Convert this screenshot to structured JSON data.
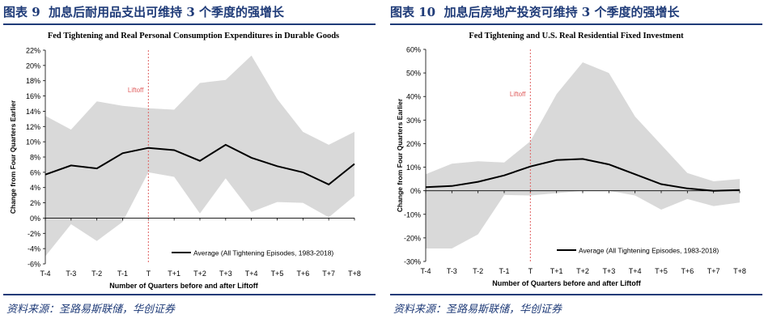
{
  "chart_data": [
    {
      "type": "line",
      "figure_label": "图表 9",
      "figure_title": "加息后耐用品支出可维持 3 个季度的强增长",
      "title": "Fed Tightening and Real Personal Consumption Expenditures in Durable Goods",
      "xlabel": "Number of Quarters before and after Liftoff",
      "ylabel": "Change from Four Quarters Earlier",
      "categories": [
        "T-4",
        "T-3",
        "T-2",
        "T-1",
        "T",
        "T+1",
        "T+2",
        "T+3",
        "T+4",
        "T+5",
        "T+6",
        "T+7",
        "T+8"
      ],
      "y_ticks": [
        -6,
        -4,
        -2,
        0,
        2,
        4,
        6,
        8,
        10,
        12,
        14,
        16,
        18,
        20,
        22
      ],
      "y_tick_labels": [
        "-6%",
        "-4%",
        "-2%",
        "0%",
        "2%",
        "4%",
        "6%",
        "8%",
        "10%",
        "12%",
        "14%",
        "16%",
        "18%",
        "20%",
        "22%"
      ],
      "ylim": [
        -6,
        22
      ],
      "band_upper": [
        13.4,
        11.6,
        15.3,
        14.7,
        14.4,
        14.2,
        17.7,
        18.1,
        21.3,
        15.6,
        11.3,
        9.6,
        11.3
      ],
      "band_lower": [
        -5.0,
        -0.8,
        -3.0,
        -0.5,
        6.0,
        5.4,
        0.6,
        5.2,
        0.8,
        2.1,
        2.0,
        0.1,
        2.9
      ],
      "series": [
        {
          "name": "Average (All Tightening Episodes, 1983-2018)",
          "values": [
            5.7,
            6.9,
            6.5,
            8.5,
            9.2,
            8.9,
            7.5,
            9.6,
            7.9,
            6.8,
            6.0,
            4.4,
            7.1
          ]
        }
      ],
      "liftoff_label": "Liftoff",
      "liftoff_category": "T",
      "source": "资料来源：圣路易斯联储，华创证券",
      "colors": {
        "band": "#d9d9d9",
        "line": "#000000",
        "liftoff": "#e06060",
        "accent": "#1f3b78"
      }
    },
    {
      "type": "line",
      "figure_label": "图表 10",
      "figure_title": "加息后房地产投资可维持 3 个季度的强增长",
      "title": "Fed Tightening and U.S. Real Residential Fixed Investment",
      "xlabel": "Number of Quarters before and after Liftoff",
      "ylabel": "Change from Four Quarters Earlier",
      "categories": [
        "T-4",
        "T-3",
        "T-2",
        "T-1",
        "T",
        "T+1",
        "T+2",
        "T+3",
        "T+4",
        "T+5",
        "T+6",
        "T+7",
        "T+8"
      ],
      "y_ticks": [
        -30,
        -20,
        -10,
        0,
        10,
        20,
        30,
        40,
        50,
        60
      ],
      "y_tick_labels": [
        "-30%",
        "-20%",
        "-10%",
        "0%",
        "10%",
        "20%",
        "30%",
        "40%",
        "50%",
        "60%"
      ],
      "ylim": [
        -30,
        60
      ],
      "band_upper": [
        7.0,
        11.5,
        12.5,
        12.0,
        21.0,
        41.0,
        54.5,
        50.0,
        31.5,
        19.5,
        7.5,
        4.0,
        5.0
      ],
      "band_lower": [
        -24.5,
        -24.5,
        -18.5,
        -1.8,
        -2.0,
        -1.0,
        0.0,
        0.0,
        -2.0,
        -8.0,
        -3.5,
        -6.5,
        -5.0
      ],
      "series": [
        {
          "name": "Average (All Tightening Episodes, 1983-2018)",
          "values": [
            1.5,
            2.0,
            3.8,
            6.5,
            10.3,
            13.0,
            13.5,
            11.2,
            7.0,
            2.8,
            1.0,
            0.0,
            0.3
          ]
        }
      ],
      "liftoff_label": "Liftoff",
      "liftoff_category": "T",
      "source": "资料来源：圣路易斯联储，华创证券",
      "colors": {
        "band": "#d9d9d9",
        "line": "#000000",
        "liftoff": "#e06060",
        "accent": "#1f3b78"
      }
    }
  ]
}
